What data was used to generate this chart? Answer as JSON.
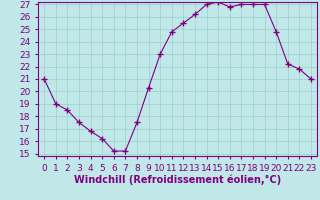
{
  "x": [
    0,
    1,
    2,
    3,
    4,
    5,
    6,
    7,
    8,
    9,
    10,
    11,
    12,
    13,
    14,
    15,
    16,
    17,
    18,
    19,
    20,
    21,
    22,
    23
  ],
  "y": [
    21,
    19,
    18.5,
    17.5,
    16.8,
    16.2,
    15.2,
    15.2,
    17.5,
    20.3,
    23,
    24.8,
    25.5,
    26.2,
    27,
    27.2,
    26.8,
    27.0,
    27.0,
    27.0,
    24.8,
    22.2,
    21.8,
    21
  ],
  "line_color": "#800080",
  "marker": "+",
  "marker_size": 4,
  "bg_color": "#c0e8e8",
  "grid_color": "#a0cccc",
  "xlabel": "Windchill (Refroidissement éolien,°C)",
  "ylim": [
    15,
    27
  ],
  "xlim": [
    -0.5,
    23.5
  ],
  "yticks": [
    15,
    16,
    17,
    18,
    19,
    20,
    21,
    22,
    23,
    24,
    25,
    26,
    27
  ],
  "xticks": [
    0,
    1,
    2,
    3,
    4,
    5,
    6,
    7,
    8,
    9,
    10,
    11,
    12,
    13,
    14,
    15,
    16,
    17,
    18,
    19,
    20,
    21,
    22,
    23
  ],
  "axis_color": "#800080",
  "tick_fontsize": 6.5,
  "xlabel_fontsize": 7.0
}
